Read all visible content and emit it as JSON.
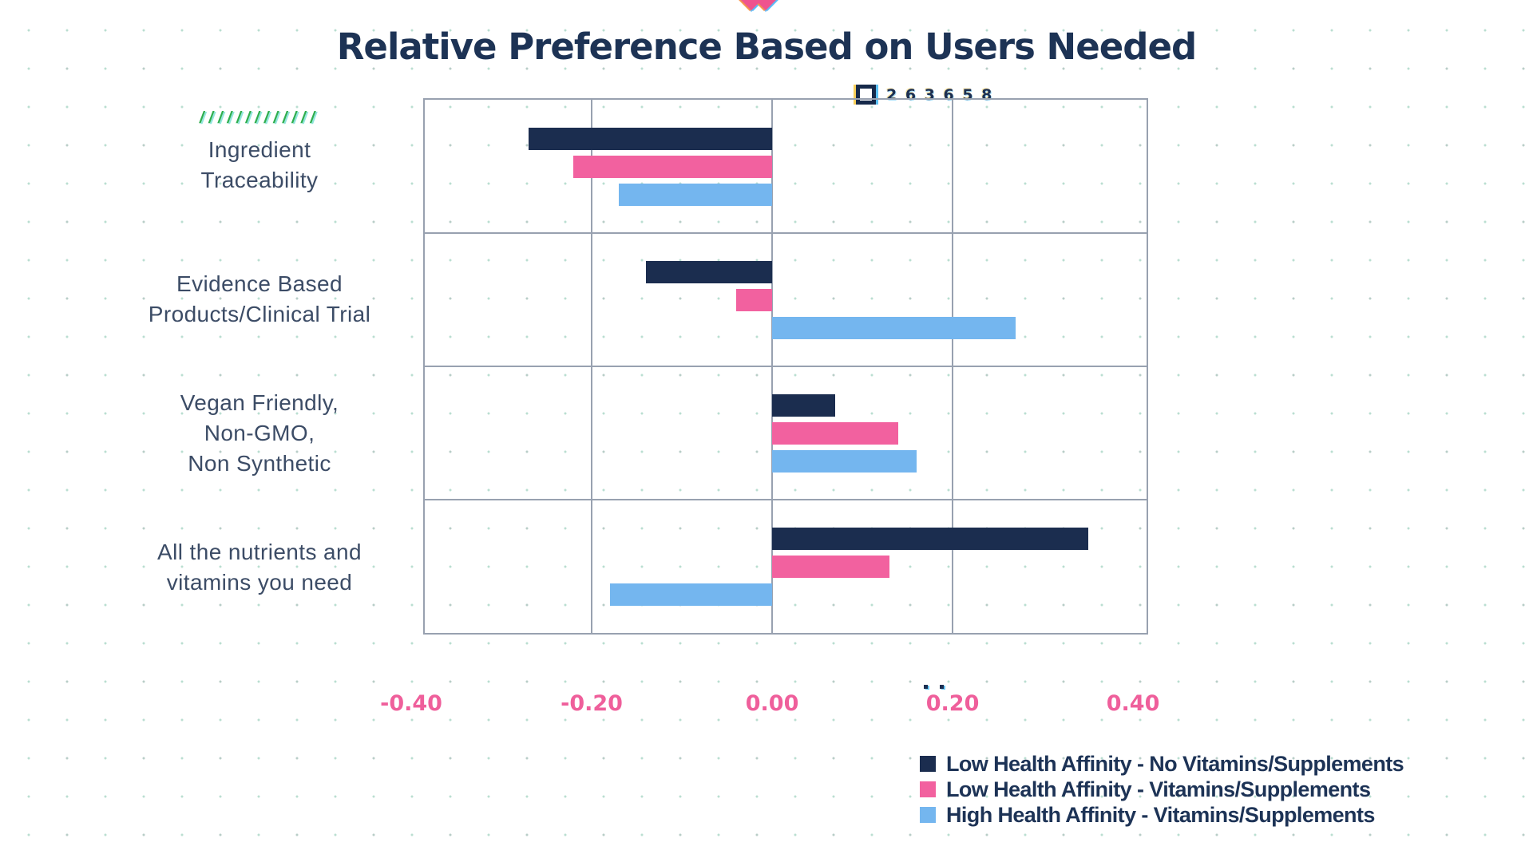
{
  "decorations": {
    "slashes": "/////////////",
    "glitch_code": "2 6 3 6 5 8"
  },
  "colors": {
    "title_navy": "#1d3355",
    "series_navy": "#1b2d4f",
    "series_pink": "#f2619f",
    "series_blue": "#74b6ef",
    "axis_label_pink": "#ef5f9b",
    "grid_gray": "#98a1b0",
    "slash_green": "#2fae4e",
    "background_dot_teal": "#76bea4"
  },
  "chart_data": {
    "type": "bar",
    "orientation": "horizontal",
    "title": "Relative Preference Based on Users Needed",
    "categories": [
      "Ingredient\nTraceability",
      "Evidence Based\nProducts/Clinical Trial",
      "Vegan Friendly,\nNon-GMO,\nNon Synthetic",
      "All the nutrients and\nvitamins you need"
    ],
    "series": [
      {
        "name": "Low Health Affinity - No Vitamins/Supplements",
        "color": "#1b2d4f",
        "values": [
          -0.27,
          -0.14,
          0.07,
          0.35
        ]
      },
      {
        "name": "Low Health Affinity - Vitamins/Supplements",
        "color": "#f2619f",
        "values": [
          -0.22,
          -0.04,
          0.14,
          0.13
        ]
      },
      {
        "name": "High Health Affinity - Vitamins/Supplements",
        "color": "#74b6ef",
        "values": [
          -0.17,
          0.27,
          0.16,
          -0.18
        ]
      }
    ],
    "x_tick_labels": [
      "-0.40",
      "-0.20",
      "0.00",
      "0.20",
      "0.40"
    ],
    "x_tick_values": [
      -0.4,
      -0.2,
      0.0,
      0.2,
      0.4
    ],
    "xlim": [
      -0.385,
      0.415
    ],
    "gridline_values": [
      -0.2,
      0.0,
      0.2
    ],
    "grid": true,
    "legend_position": "bottom-right"
  }
}
